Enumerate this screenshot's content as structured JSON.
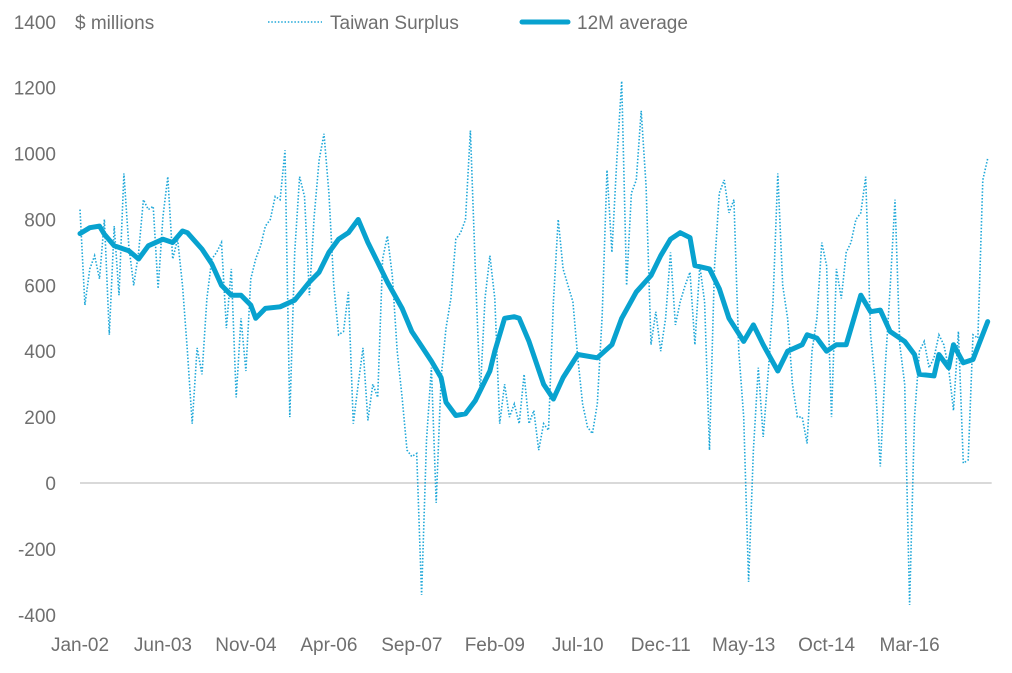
{
  "chart_data": {
    "type": "line",
    "title": "",
    "ylabel": "$ millions",
    "xlabel": "",
    "ylim": [
      -400,
      1400
    ],
    "yticks": [
      -400,
      -200,
      0,
      200,
      400,
      600,
      800,
      1000,
      1200,
      1400
    ],
    "xtick_labels": [
      "Jan-02",
      "Jun-03",
      "Nov-04",
      "Apr-06",
      "Sep-07",
      "Feb-09",
      "Jul-10",
      "Dec-11",
      "May-13",
      "Oct-14",
      "Mar-16"
    ],
    "xtick_month_index": [
      0,
      17,
      34,
      51,
      68,
      85,
      102,
      119,
      136,
      153,
      170
    ],
    "x_start": "Jan-02",
    "x_frequency": "monthly",
    "legend_position": "top",
    "grid": false,
    "series": [
      {
        "name": "Taiwan Surplus",
        "style": "dotted",
        "color": "#1ea7d8",
        "values": [
          830,
          540,
          650,
          690,
          620,
          800,
          450,
          780,
          570,
          940,
          720,
          600,
          700,
          860,
          830,
          840,
          590,
          810,
          930,
          680,
          740,
          600,
          400,
          180,
          410,
          330,
          560,
          680,
          700,
          730,
          470,
          650,
          260,
          500,
          340,
          620,
          680,
          720,
          780,
          800,
          870,
          860,
          1010,
          200,
          700,
          930,
          870,
          570,
          810,
          980,
          1060,
          880,
          600,
          450,
          460,
          580,
          180,
          300,
          410,
          190,
          300,
          260,
          680,
          750,
          630,
          400,
          260,
          100,
          80,
          90,
          -340,
          130,
          350,
          -60,
          320,
          470,
          560,
          740,
          760,
          800,
          1070,
          650,
          270,
          560,
          690,
          560,
          180,
          300,
          200,
          240,
          180,
          330,
          180,
          220,
          100,
          180,
          160,
          550,
          800,
          650,
          600,
          550,
          380,
          240,
          170,
          150,
          240,
          510,
          950,
          700,
          980,
          1220,
          600,
          880,
          920,
          1130,
          900,
          420,
          520,
          400,
          500,
          700,
          480,
          550,
          600,
          640,
          420,
          660,
          550,
          100,
          650,
          880,
          920,
          820,
          860,
          400,
          200,
          -300,
          100,
          350,
          140,
          330,
          550,
          940,
          600,
          500,
          300,
          200,
          200,
          120,
          400,
          500,
          730,
          660,
          200,
          650,
          560,
          700,
          730,
          800,
          820,
          930,
          450,
          300,
          50,
          350,
          590,
          860,
          420,
          300,
          -370,
          200,
          400,
          430,
          350,
          380,
          450,
          420,
          350,
          220,
          460,
          60,
          70,
          450,
          440,
          920,
          985
        ]
      },
      {
        "name": "12M average",
        "style": "solid-thick",
        "color": "#08a2cf",
        "points": [
          [
            0,
            757
          ],
          [
            2,
            775
          ],
          [
            4,
            780
          ],
          [
            5,
            755
          ],
          [
            7,
            720
          ],
          [
            10,
            705
          ],
          [
            12,
            680
          ],
          [
            14,
            720
          ],
          [
            17,
            740
          ],
          [
            19,
            730
          ],
          [
            21,
            765
          ],
          [
            22,
            760
          ],
          [
            25,
            710
          ],
          [
            27,
            665
          ],
          [
            29,
            600
          ],
          [
            31,
            570
          ],
          [
            33,
            570
          ],
          [
            35,
            540
          ],
          [
            36,
            500
          ],
          [
            38,
            530
          ],
          [
            41,
            535
          ],
          [
            44,
            555
          ],
          [
            47,
            610
          ],
          [
            49,
            640
          ],
          [
            51,
            700
          ],
          [
            53,
            740
          ],
          [
            55,
            760
          ],
          [
            57,
            800
          ],
          [
            59,
            730
          ],
          [
            61,
            670
          ],
          [
            63,
            610
          ],
          [
            66,
            530
          ],
          [
            68,
            460
          ],
          [
            70,
            415
          ],
          [
            72,
            370
          ],
          [
            74,
            320
          ],
          [
            75,
            245
          ],
          [
            77,
            205
          ],
          [
            79,
            210
          ],
          [
            81,
            250
          ],
          [
            84,
            340
          ],
          [
            85,
            400
          ],
          [
            87,
            500
          ],
          [
            89,
            505
          ],
          [
            90,
            500
          ],
          [
            92,
            430
          ],
          [
            95,
            300
          ],
          [
            97,
            255
          ],
          [
            99,
            320
          ],
          [
            102,
            390
          ],
          [
            106,
            380
          ],
          [
            109,
            420
          ],
          [
            111,
            500
          ],
          [
            114,
            580
          ],
          [
            117,
            630
          ],
          [
            119,
            690
          ],
          [
            121,
            740
          ],
          [
            123,
            760
          ],
          [
            125,
            745
          ],
          [
            126,
            660
          ],
          [
            129,
            650
          ],
          [
            131,
            590
          ],
          [
            133,
            500
          ],
          [
            136,
            430
          ],
          [
            138,
            480
          ],
          [
            140,
            420
          ],
          [
            143,
            340
          ],
          [
            145,
            400
          ],
          [
            148,
            420
          ],
          [
            149,
            450
          ],
          [
            151,
            440
          ],
          [
            153,
            400
          ],
          [
            155,
            420
          ],
          [
            157,
            420
          ],
          [
            160,
            570
          ],
          [
            162,
            520
          ],
          [
            164,
            525
          ],
          [
            166,
            460
          ],
          [
            169,
            430
          ],
          [
            171,
            390
          ],
          [
            172,
            330
          ],
          [
            175,
            325
          ],
          [
            176,
            390
          ],
          [
            178,
            350
          ],
          [
            179,
            420
          ],
          [
            181,
            365
          ],
          [
            183,
            375
          ],
          [
            186,
            490
          ]
        ]
      }
    ]
  }
}
